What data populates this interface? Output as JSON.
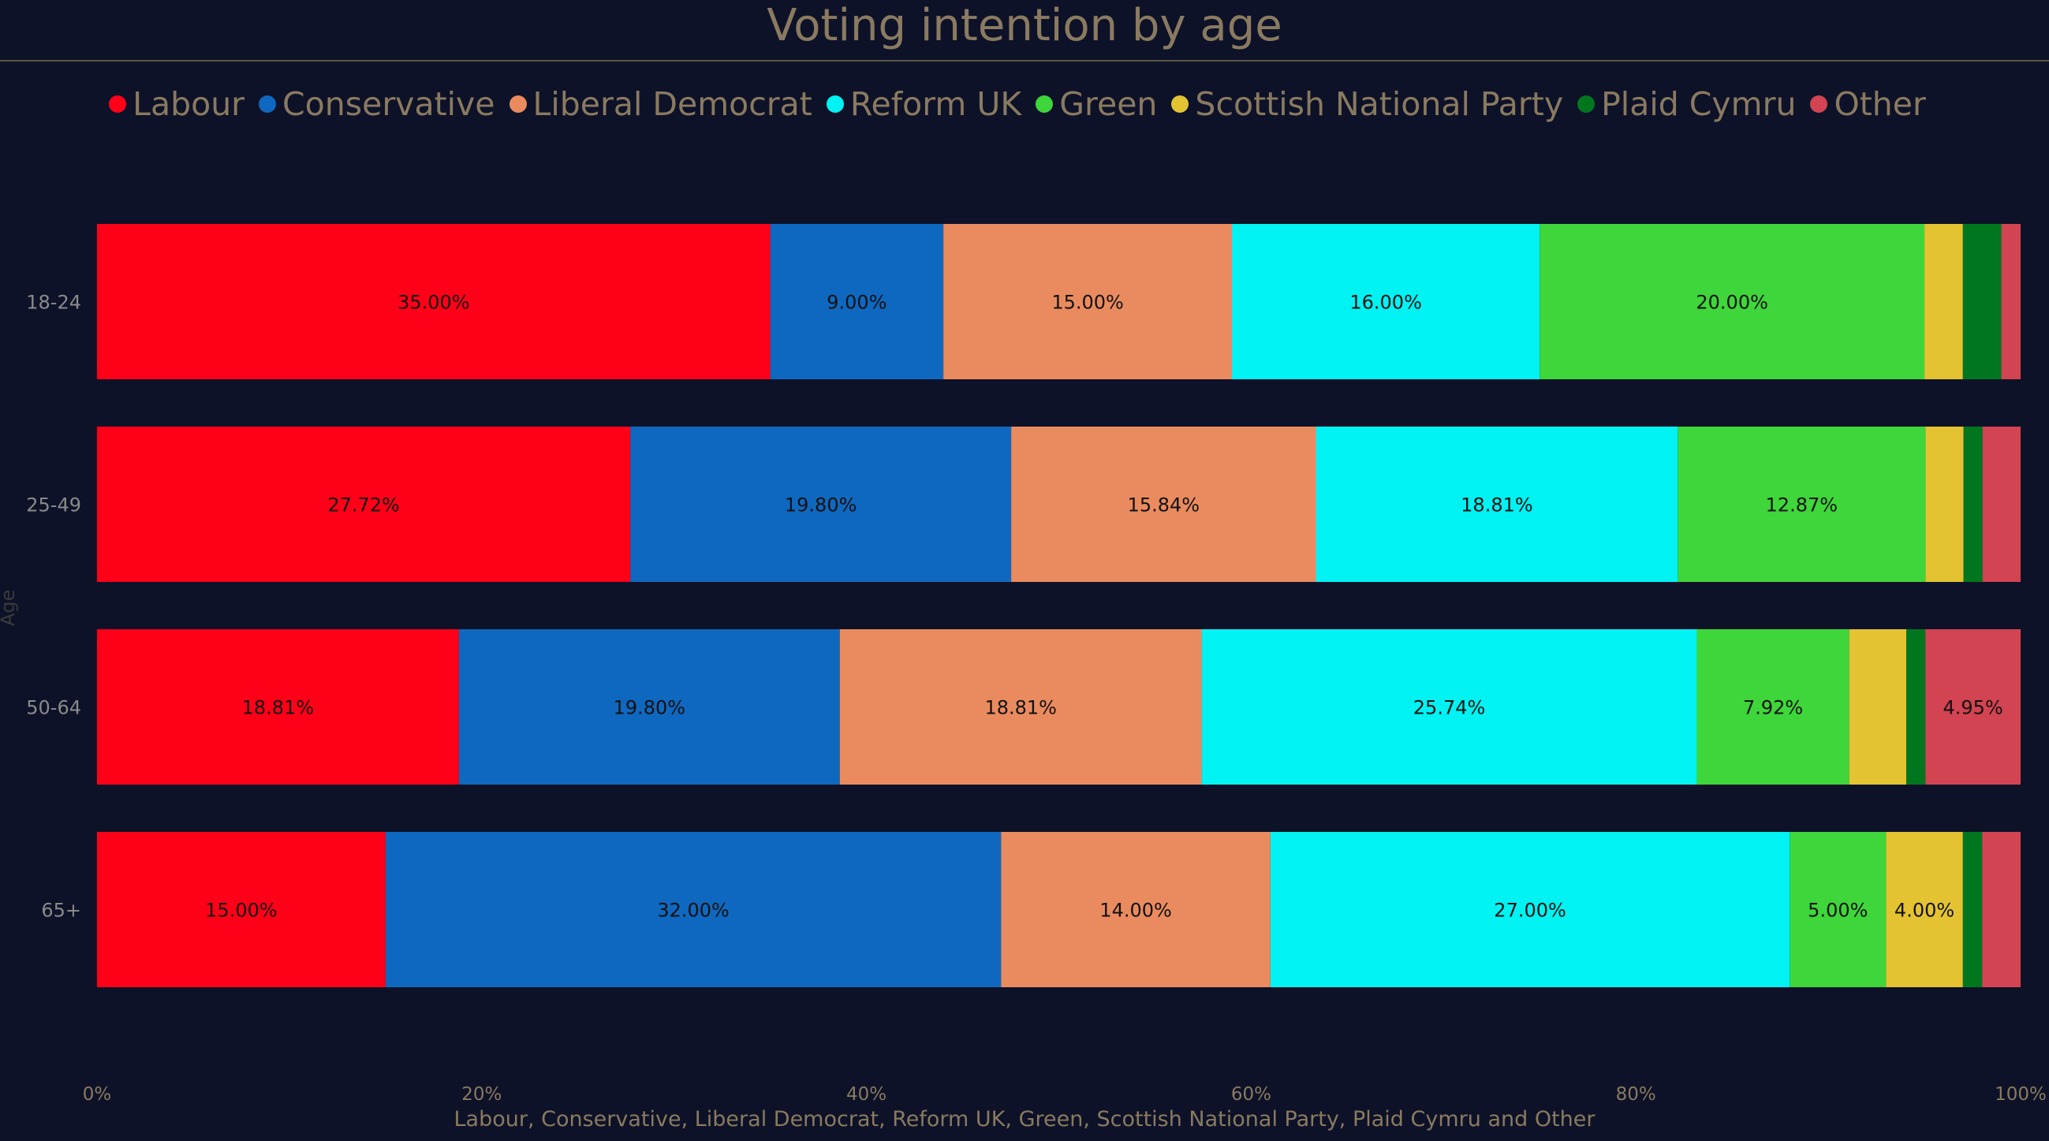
{
  "chart_data": {
    "type": "bar",
    "orientation": "horizontal",
    "stacked": "100%",
    "title": "Voting intention by age",
    "xlabel": "Labour, Conservative, Liberal Democrat, Reform UK, Green, Scottish National Party, Plaid Cymru and Other",
    "ylabel": "Age",
    "categories": [
      "18-24",
      "25-49",
      "50-64",
      "65+"
    ],
    "x_ticks": [
      "0%",
      "20%",
      "40%",
      "60%",
      "80%",
      "100%"
    ],
    "xlim": [
      0,
      100
    ],
    "legend_position": "top",
    "series": [
      {
        "name": "Labour",
        "color": "#ff0019",
        "values": [
          35.0,
          27.72,
          18.81,
          15.0
        ],
        "labels": [
          "35.00%",
          "27.72%",
          "18.81%",
          "15.00%"
        ]
      },
      {
        "name": "Conservative",
        "color": "#0f68bf",
        "values": [
          9.0,
          19.8,
          19.8,
          32.0
        ],
        "labels": [
          "9.00%",
          "19.80%",
          "19.80%",
          "32.00%"
        ]
      },
      {
        "name": "Liberal Democrat",
        "color": "#ea8b5f",
        "values": [
          15.0,
          15.84,
          18.81,
          14.0
        ],
        "labels": [
          "15.00%",
          "15.84%",
          "18.81%",
          "14.00%"
        ]
      },
      {
        "name": "Reform UK",
        "color": "#00f2f2",
        "values": [
          16.0,
          18.81,
          25.74,
          27.0
        ],
        "labels": [
          "16.00%",
          "18.81%",
          "25.74%",
          "27.00%"
        ]
      },
      {
        "name": "Green",
        "color": "#3ed63a",
        "values": [
          20.0,
          12.87,
          7.92,
          5.0
        ],
        "labels": [
          "20.00%",
          "12.87%",
          "7.92%",
          "5.00%"
        ]
      },
      {
        "name": "Scottish National Party",
        "color": "#e4c332",
        "values": [
          2.0,
          1.98,
          2.97,
          4.0
        ],
        "labels": [
          "",
          "",
          "",
          "4.00%"
        ]
      },
      {
        "name": "Plaid Cymru",
        "color": "#00771f",
        "values": [
          2.0,
          0.99,
          0.99,
          1.0
        ],
        "labels": [
          "",
          "",
          "",
          ""
        ]
      },
      {
        "name": "Other",
        "color": "#d24451",
        "values": [
          1.0,
          1.98,
          4.95,
          2.0
        ],
        "labels": [
          "",
          "",
          "4.95%",
          ""
        ]
      }
    ]
  }
}
